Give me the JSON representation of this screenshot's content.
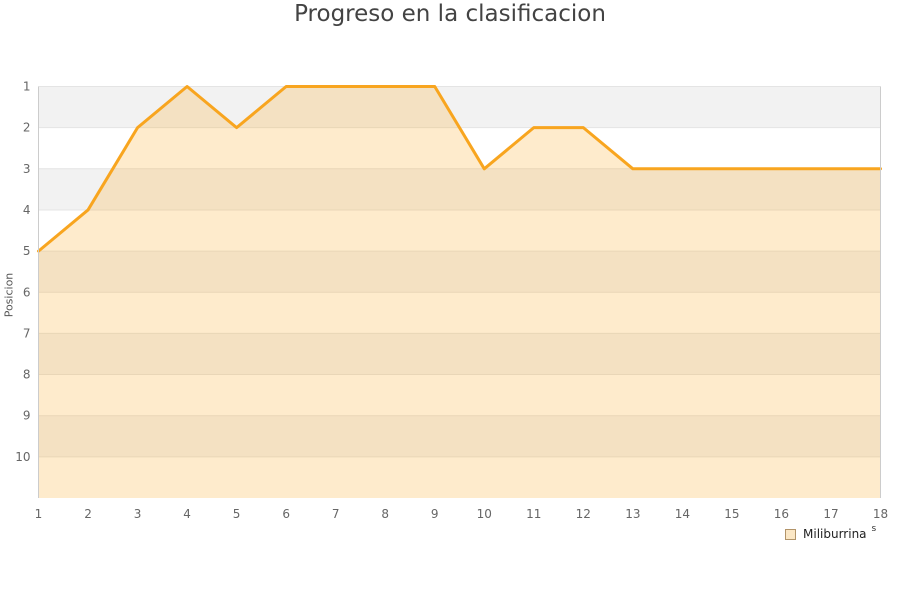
{
  "title": "Progreso en la clasificacion",
  "chart_data": {
    "type": "area",
    "title": "Progreso en la clasificacion",
    "xlabel": "",
    "ylabel": "Posicion",
    "x": [
      1,
      2,
      3,
      4,
      5,
      6,
      7,
      8,
      9,
      10,
      11,
      12,
      13,
      14,
      15,
      16,
      17,
      18
    ],
    "series": [
      {
        "name": "Miliburrina",
        "values": [
          5,
          4,
          2,
          1,
          2,
          1,
          1,
          1,
          1,
          3,
          2,
          2,
          3,
          3,
          3,
          3,
          3,
          3
        ]
      }
    ],
    "y_axis": {
      "inverted": true,
      "min": 1,
      "max": 11,
      "tick_labels": [
        "1",
        "2",
        "3",
        "4",
        "5",
        "6",
        "7",
        "8",
        "9",
        "10"
      ]
    },
    "x_tick_labels": [
      "1",
      "2",
      "3",
      "4",
      "5",
      "6",
      "7",
      "8",
      "9",
      "10",
      "11",
      "12",
      "13",
      "14",
      "15",
      "16",
      "17",
      "18"
    ],
    "legend_position": "bottom-right",
    "grid": "alternating-horizontal-bands",
    "colors": {
      "line": "#f8a51f",
      "area_fill": "rgba(249,170,40,0.24)",
      "band_gray": "#f2f2f2",
      "band_white": "#ffffff",
      "gridline": "#e4e4e4",
      "plot_border": "#cccccc",
      "tick_text": "#666666",
      "title_text": "#434343"
    }
  },
  "legend": {
    "label": "Miliburrina",
    "suffix": "s"
  }
}
